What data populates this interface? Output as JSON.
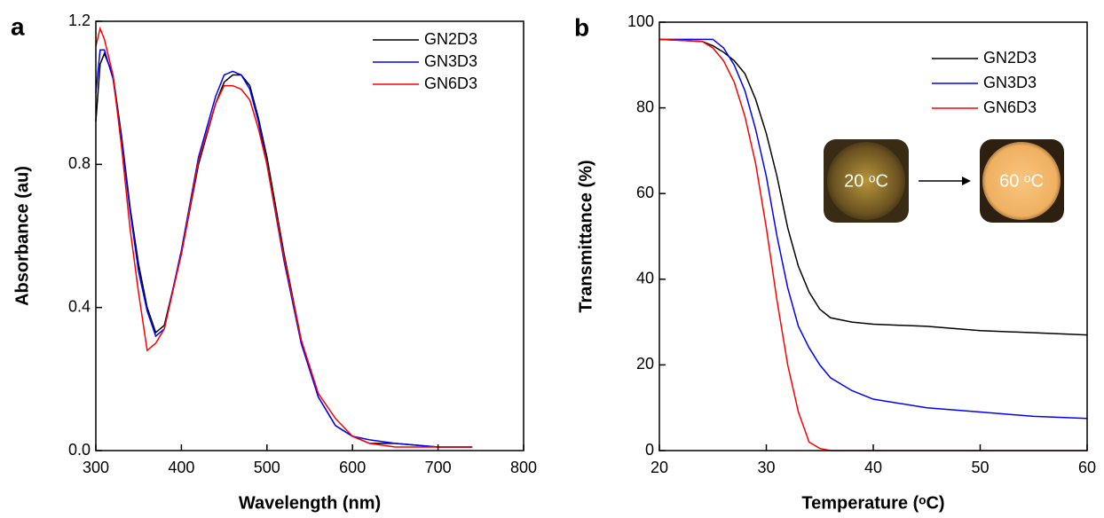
{
  "chart_data": [
    {
      "type": "line",
      "panel_label": "a",
      "xlabel": "Wavelength (nm)",
      "ylabel": "Absorbance (au)",
      "x": [
        300,
        305,
        310,
        320,
        330,
        340,
        350,
        360,
        370,
        380,
        400,
        420,
        440,
        450,
        460,
        470,
        480,
        490,
        500,
        520,
        540,
        560,
        580,
        600,
        620,
        650,
        700,
        740
      ],
      "series": [
        {
          "name": "GN2D3",
          "color": "#000000",
          "values": [
            0.92,
            1.08,
            1.11,
            1.05,
            0.88,
            0.68,
            0.52,
            0.4,
            0.33,
            0.35,
            0.55,
            0.8,
            0.97,
            1.03,
            1.05,
            1.05,
            1.02,
            0.93,
            0.82,
            0.55,
            0.31,
            0.15,
            0.07,
            0.04,
            0.02,
            0.02,
            0.01,
            0.01
          ]
        },
        {
          "name": "GN3D3",
          "color": "#0000ff",
          "values": [
            1.0,
            1.12,
            1.12,
            1.04,
            0.87,
            0.67,
            0.5,
            0.39,
            0.32,
            0.34,
            0.56,
            0.82,
            0.99,
            1.05,
            1.06,
            1.05,
            1.01,
            0.92,
            0.8,
            0.53,
            0.3,
            0.15,
            0.07,
            0.04,
            0.03,
            0.02,
            0.01,
            0.01
          ]
        },
        {
          "name": "GN6D3",
          "color": "#ff0000",
          "values": [
            1.13,
            1.18,
            1.15,
            1.05,
            0.85,
            0.62,
            0.44,
            0.28,
            0.3,
            0.34,
            0.55,
            0.81,
            0.97,
            1.02,
            1.02,
            1.01,
            0.98,
            0.9,
            0.8,
            0.54,
            0.31,
            0.16,
            0.09,
            0.04,
            0.02,
            0.01,
            0.01,
            0.01
          ]
        }
      ],
      "xlim": [
        300,
        800
      ],
      "xticks": [
        300,
        400,
        500,
        600,
        700,
        800
      ],
      "ylim": [
        0,
        1.2
      ],
      "yticks": [
        {
          "value": 0,
          "label": "0.0"
        },
        0.4,
        0.8,
        1.2
      ],
      "legend": "upper right"
    },
    {
      "type": "line",
      "panel_label": "b",
      "xlabel": "Temperature (ᵒC)",
      "ylabel": "Transmittance (%)",
      "x": [
        20,
        24,
        25,
        26,
        27,
        28,
        29,
        30,
        31,
        32,
        33,
        34,
        35,
        36,
        38,
        40,
        45,
        50,
        55,
        60
      ],
      "series": [
        {
          "name": "GN2D3",
          "color": "#000000",
          "values": [
            96,
            95.5,
            94.5,
            93,
            91,
            88,
            82,
            74,
            64,
            52,
            43,
            37,
            33,
            31,
            30,
            29.5,
            29,
            28,
            27.5,
            27
          ]
        },
        {
          "name": "GN3D3",
          "color": "#0000ff",
          "values": [
            96,
            96,
            96,
            94,
            90,
            84,
            75,
            64,
            50,
            38,
            29,
            24,
            20,
            17,
            14,
            12,
            10,
            9,
            8,
            7.5
          ]
        },
        {
          "name": "GN6D3",
          "color": "#ff0000",
          "values": [
            96,
            95.5,
            94,
            91,
            86,
            78,
            67,
            52,
            35,
            20,
            9,
            2,
            0.5,
            0,
            0,
            0,
            0,
            0,
            0,
            0
          ]
        }
      ],
      "xlim": [
        20,
        60
      ],
      "xticks": [
        20,
        30,
        40,
        50,
        60
      ],
      "ylim": [
        0,
        100
      ],
      "yticks": [
        0,
        20,
        40,
        60,
        80,
        100
      ],
      "legend": "upper right",
      "annotations": [
        "20 ᵒC",
        "60 ᵒC"
      ]
    }
  ]
}
